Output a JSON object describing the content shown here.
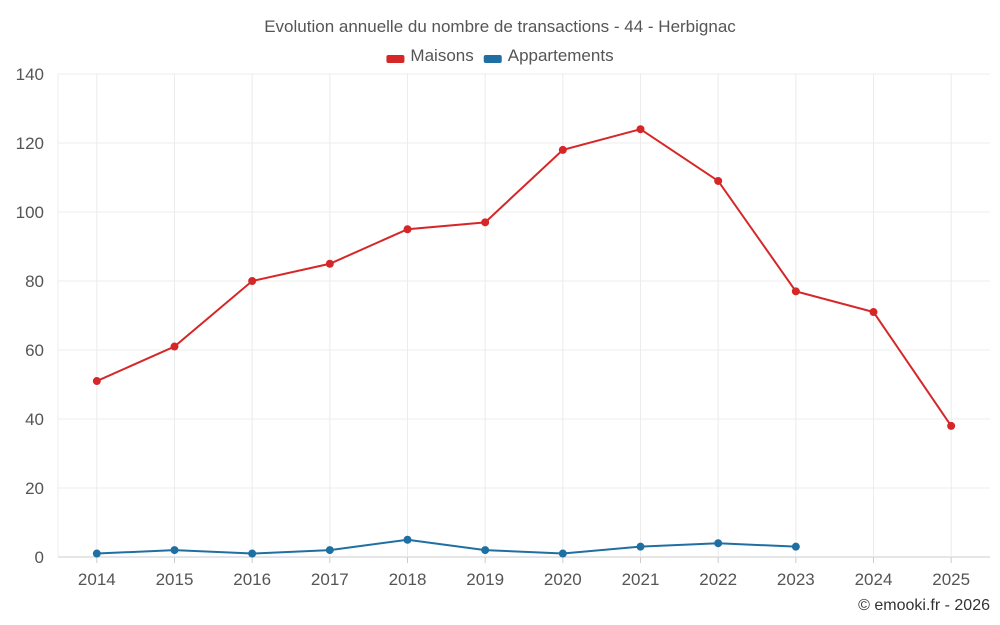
{
  "chart_data": {
    "type": "line",
    "title": "Evolution annuelle du nombre de transactions - 44 - Herbignac",
    "categories": [
      "2014",
      "2015",
      "2016",
      "2017",
      "2018",
      "2019",
      "2020",
      "2021",
      "2022",
      "2023",
      "2024",
      "2025"
    ],
    "series": [
      {
        "name": "Maisons",
        "color": "#d62728",
        "values": [
          51,
          61,
          80,
          85,
          95,
          97,
          118,
          124,
          109,
          77,
          71,
          38
        ]
      },
      {
        "name": "Appartements",
        "color": "#1f6fa3",
        "values": [
          1,
          2,
          1,
          2,
          5,
          2,
          1,
          3,
          4,
          3,
          null,
          null
        ]
      }
    ],
    "ylim": [
      0,
      140
    ],
    "yticks": [
      0,
      20,
      40,
      60,
      80,
      100,
      120,
      140
    ],
    "xlabel": "",
    "ylabel": "",
    "grid": true,
    "legend_position": "top-center"
  },
  "credit": "© emooki.fr - 2026"
}
